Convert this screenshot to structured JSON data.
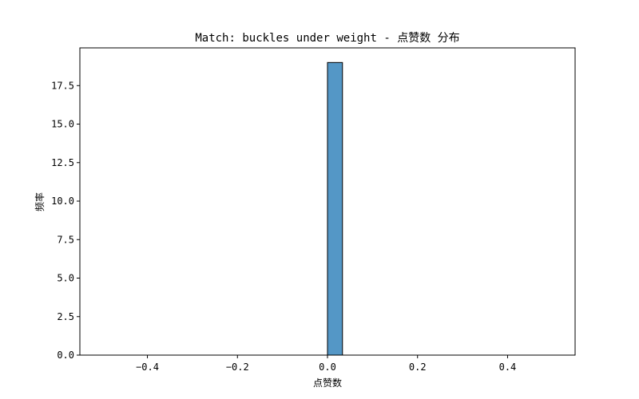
{
  "chart_data": {
    "type": "bar",
    "title": "Match: buckles under weight - 点赞数 分布",
    "xlabel": "点赞数",
    "ylabel": "频率",
    "xlim": [
      -0.55,
      0.55
    ],
    "ylim": [
      0,
      19.95
    ],
    "x_ticks": [
      -0.4,
      -0.2,
      0.0,
      0.2,
      0.4
    ],
    "x_tick_labels": [
      "−0.4",
      "−0.2",
      "0.0",
      "0.2",
      "0.4"
    ],
    "y_ticks": [
      0,
      2.5,
      5,
      7.5,
      10,
      12.5,
      15,
      17.5
    ],
    "y_tick_labels": [
      "0.0",
      "2.5",
      "5.0",
      "7.5",
      "10.0",
      "12.5",
      "15.0",
      "17.5"
    ],
    "bin_edges": [
      -0.5,
      -0.4667,
      -0.4333,
      -0.4,
      -0.3667,
      -0.3333,
      -0.3,
      -0.2667,
      -0.2333,
      -0.2,
      -0.1667,
      -0.1333,
      -0.1,
      -0.0667,
      -0.0333,
      0.0,
      0.0333,
      0.0667,
      0.1,
      0.1333,
      0.1667,
      0.2,
      0.2333,
      0.2667,
      0.3,
      0.3333,
      0.3667,
      0.4,
      0.4333,
      0.4667,
      0.5
    ],
    "counts": [
      0,
      0,
      0,
      0,
      0,
      0,
      0,
      0,
      0,
      0,
      0,
      0,
      0,
      0,
      0,
      19,
      0,
      0,
      0,
      0,
      0,
      0,
      0,
      0,
      0,
      0,
      0,
      0,
      0,
      0
    ],
    "bar_color": "#5497c6",
    "edge_color": "#000000",
    "grid": false,
    "legend": "none"
  }
}
